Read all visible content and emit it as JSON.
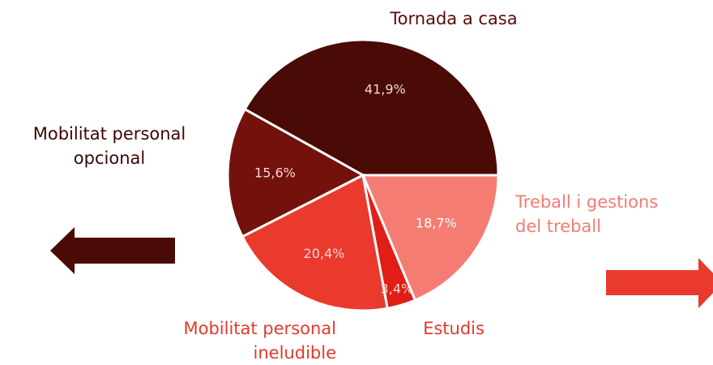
{
  "chart_data": {
    "type": "pie",
    "categories": [
      "Tornada a casa",
      "Mobilitat personal opcional",
      "Mobilitat personal ineludible",
      "Estudis",
      "Treball i gestions del treball"
    ],
    "values": [
      41.9,
      15.6,
      20.4,
      3.4,
      18.7
    ],
    "value_labels": [
      "41,9%",
      "15,6%",
      "20,4%",
      "3,4%",
      "18,7%"
    ],
    "colors": [
      "#4a0a06",
      "#73120d",
      "#ea3a2e",
      "#e01d17",
      "#f47c73"
    ],
    "label_colors": [
      "#5a0c08",
      "#3a0604",
      "#e33a2b",
      "#e33a2b",
      "#f47c73"
    ]
  }
}
